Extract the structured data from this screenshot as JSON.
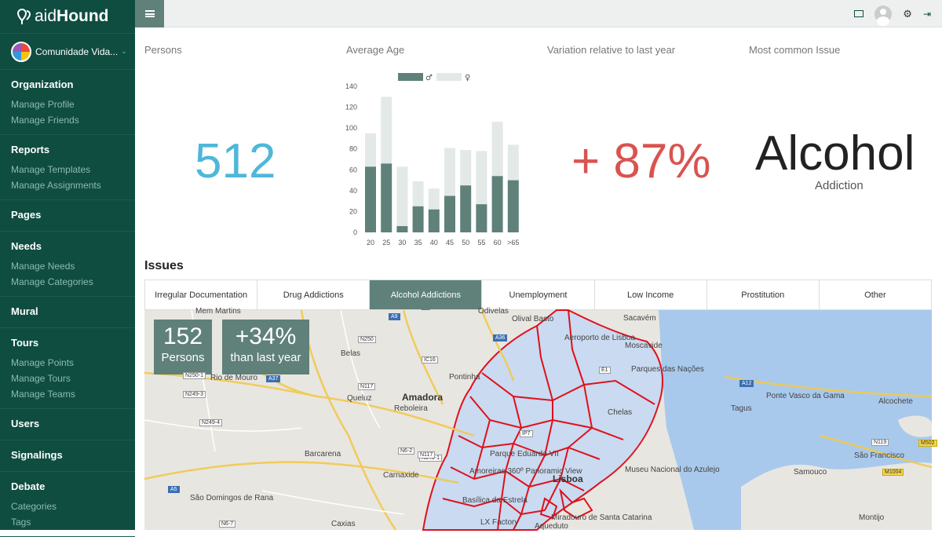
{
  "app": {
    "logo_light": "aid",
    "logo_bold": "Hound"
  },
  "community": {
    "name": "Comunidade Vida..."
  },
  "sidebar": [
    {
      "title": "Organization",
      "items": [
        "Manage Profile",
        "Manage Friends"
      ]
    },
    {
      "title": "Reports",
      "items": [
        "Manage Templates",
        "Manage Assignments"
      ]
    },
    {
      "title": "Pages",
      "items": []
    },
    {
      "title": "Needs",
      "items": [
        "Manage Needs",
        "Manage Categories"
      ]
    },
    {
      "title": "Mural",
      "items": []
    },
    {
      "title": "Tours",
      "items": [
        "Manage Points",
        "Manage Tours",
        "Manage Teams"
      ]
    },
    {
      "title": "Users",
      "items": []
    },
    {
      "title": "Signalings",
      "items": []
    },
    {
      "title": "Debate",
      "items": [
        "Categories",
        "Tags"
      ]
    }
  ],
  "topbar": {
    "icons": [
      "menu-icon",
      "mail-icon",
      "user-avatar-icon",
      "gear-icon",
      "logout-icon"
    ]
  },
  "stats": {
    "persons_label": "Persons",
    "persons_value": "512",
    "avg_age_label": "Average Age",
    "variation_label": "Variation relative to last year",
    "variation_value": "+ 87%",
    "issue_label": "Most common Issue",
    "issue_value": "Alcohol",
    "issue_sub": "Addiction"
  },
  "colors": {
    "sidebar": "#0f4d41",
    "accent": "#5f8179",
    "persons": "#4fb7d9",
    "variation": "#d9534f",
    "map_borders": "#e0101a"
  },
  "chart_data": {
    "type": "bar",
    "stacked": true,
    "categories": [
      "20",
      "25",
      "30",
      "35",
      "40",
      "45",
      "50",
      "55",
      "60",
      ">65"
    ],
    "series": [
      {
        "name": "male",
        "color": "#5f8179",
        "values": [
          63,
          66,
          6,
          25,
          22,
          35,
          45,
          27,
          54,
          50
        ]
      },
      {
        "name": "female",
        "color": "#e3e9e6",
        "values": [
          32,
          64,
          57,
          24,
          20,
          46,
          34,
          51,
          52,
          34
        ]
      }
    ],
    "legend": [
      "♂",
      "♀"
    ],
    "yticks": [
      0,
      20,
      40,
      60,
      80,
      100,
      120,
      140
    ],
    "ylim": [
      0,
      140
    ],
    "legend_position": "top"
  },
  "issues": {
    "title": "Issues",
    "tabs": [
      "Irregular Documentation",
      "Drug Addictions",
      "Alcohol Addictions",
      "Unemployment",
      "Low Income",
      "Prostitution",
      "Other"
    ],
    "active_tab": 2
  },
  "map": {
    "persons_value": "152",
    "persons_label": "Persons",
    "change_value": "+34%",
    "change_label": "than last year",
    "place_labels": [
      "Mem Martins",
      "Belas",
      "Rio de Mouro",
      "Queluz",
      "Amadora",
      "Reboleira",
      "Pontinha",
      "Odivelas",
      "Olival Basto",
      "Sacavém",
      "Aeroporto de Lisboa",
      "Moscavide",
      "Barcarena",
      "Carnaxide",
      "São Domingos de Rana",
      "Caxias",
      "Chelas",
      "Parque Eduardo VII",
      "Lisboa",
      "Museu Nacional do Azulejo",
      "Ponte Vasco da Gama",
      "Alcochete",
      "São Francisco",
      "Samouco",
      "Montijo",
      "Tagus",
      "Miradouro de Santa Catarina",
      "Parques das Nações",
      "Basílica da Estrela",
      "LX Factory",
      "Aqueduto",
      "Amoreiras 360º Panoramic View"
    ],
    "road_labels": [
      "A9",
      "N250",
      "N250-1",
      "IC16",
      "N117",
      "A37",
      "N249-3",
      "N249-4",
      "A5",
      "N6-2",
      "N6-7",
      "A36",
      "A12",
      "N119",
      "M1004",
      "M502",
      "N249-1",
      "E1",
      "IP7",
      "N117"
    ]
  }
}
